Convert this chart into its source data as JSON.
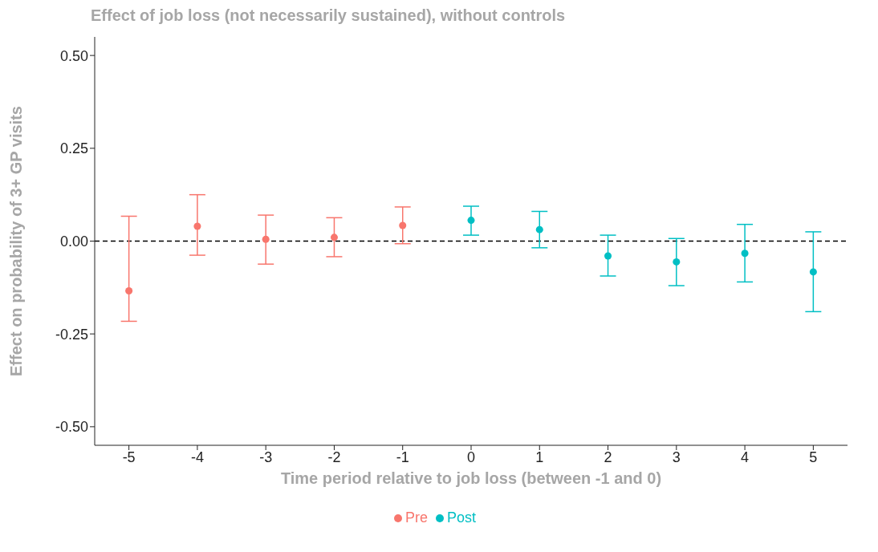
{
  "chart_data": {
    "type": "scatter",
    "title": "Effect of job loss (not necessarily sustained), without controls",
    "xlabel": "Time period relative to job loss (between -1 and 0)",
    "ylabel": "Effect on probability of 3+ GP visits",
    "x": [
      -5,
      -4,
      -3,
      -2,
      -1,
      0,
      1,
      2,
      3,
      4,
      5
    ],
    "xlim": [
      -5.5,
      5.5
    ],
    "xticks": [
      -5,
      -4,
      -3,
      -2,
      -1,
      0,
      1,
      2,
      3,
      4,
      5
    ],
    "ylim": [
      -0.55,
      0.55
    ],
    "yticks": [
      {
        "value": -0.5,
        "label": "-0.50"
      },
      {
        "value": -0.25,
        "label": "-0.25"
      },
      {
        "value": 0,
        "label": "0.00"
      },
      {
        "value": 0.25,
        "label": "0.25"
      },
      {
        "value": 0.5,
        "label": "0.50"
      }
    ],
    "series": [
      {
        "name": "Pre",
        "color": "#f8766d",
        "values": [
          -0.134,
          0.04,
          0.005,
          0.01,
          0.042,
          null,
          null,
          null,
          null,
          null,
          null
        ],
        "errors": [
          [
            -0.216,
            0.067
          ],
          [
            -0.038,
            0.125
          ],
          [
            -0.062,
            0.07
          ],
          [
            -0.042,
            0.063
          ],
          [
            -0.007,
            0.092
          ],
          null,
          null,
          null,
          null,
          null,
          null
        ]
      },
      {
        "name": "Post",
        "color": "#00bfc4",
        "values": [
          null,
          null,
          null,
          null,
          null,
          0.056,
          0.031,
          -0.04,
          -0.056,
          -0.033,
          -0.083
        ],
        "errors": [
          null,
          null,
          null,
          null,
          null,
          [
            0.016,
            0.094
          ],
          [
            -0.018,
            0.08
          ],
          [
            -0.094,
            0.016
          ],
          [
            -0.12,
            0.007
          ],
          [
            -0.11,
            0.045
          ],
          [
            -0.19,
            0.025
          ]
        ]
      }
    ],
    "ref_lines": [
      {
        "axis": "y",
        "value": 0,
        "line_style": "dashed",
        "color": "#000000"
      }
    ],
    "marker": "circle",
    "legend": "bottom"
  }
}
